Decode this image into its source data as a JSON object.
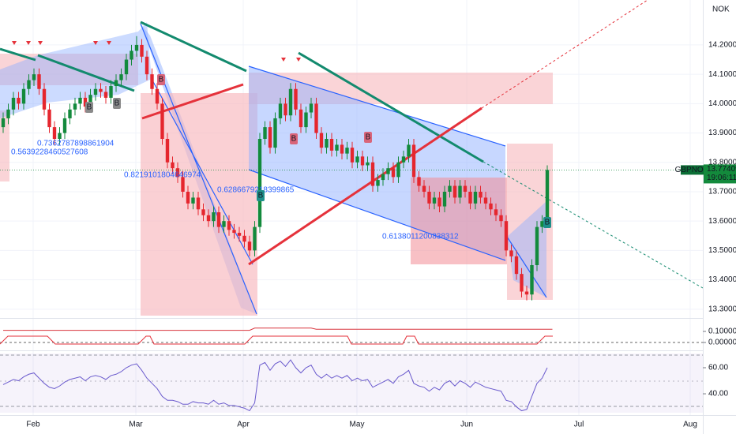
{
  "chart_data": {
    "type": "candlestick",
    "symbol": "GBPNOK",
    "currency": "NOK",
    "months": [
      "Feb",
      "Mar",
      "Apr",
      "May",
      "Jun",
      "Jul",
      "Aug"
    ],
    "ylim": [
      13.278,
      14.353
    ],
    "yticks": [
      {
        "value": 14.2,
        "label": "14.20000"
      },
      {
        "value": 14.1,
        "label": "14.10000"
      },
      {
        "value": 14.0,
        "label": "14.00000"
      },
      {
        "value": 13.9,
        "label": "13.90000"
      },
      {
        "value": 13.8,
        "label": "13.80000"
      },
      {
        "value": 13.7,
        "label": "13.70000"
      },
      {
        "value": 13.6,
        "label": "13.60000"
      },
      {
        "value": 13.5,
        "label": "13.50000"
      },
      {
        "value": 13.4,
        "label": "13.40000"
      },
      {
        "value": 13.3,
        "label": "13.30000"
      }
    ],
    "grid": true,
    "up_color": "#138a3c",
    "down_color": "#e5262e",
    "last_price": 13.77409,
    "countdown": "19:06:11",
    "candles": [
      [
        13.92,
        13.97,
        13.9,
        13.95
      ],
      [
        13.95,
        14.0,
        13.93,
        13.98
      ],
      [
        13.98,
        14.04,
        13.96,
        14.02
      ],
      [
        14.02,
        14.04,
        13.98,
        14.0
      ],
      [
        14.0,
        14.07,
        13.98,
        14.05
      ],
      [
        14.05,
        14.1,
        14.03,
        14.08
      ],
      [
        14.08,
        14.12,
        14.06,
        14.1
      ],
      [
        14.1,
        14.12,
        14.03,
        14.05
      ],
      [
        14.05,
        14.07,
        13.96,
        13.98
      ],
      [
        13.98,
        14.0,
        13.9,
        13.92
      ],
      [
        13.92,
        13.94,
        13.86,
        13.88
      ],
      [
        13.88,
        13.92,
        13.86,
        13.9
      ],
      [
        13.9,
        13.97,
        13.88,
        13.95
      ],
      [
        13.95,
        14.0,
        13.93,
        13.98
      ],
      [
        13.98,
        14.02,
        13.96,
        14.0
      ],
      [
        14.0,
        14.04,
        13.98,
        14.02
      ],
      [
        14.02,
        14.04,
        13.97,
        13.99
      ],
      [
        13.99,
        14.05,
        13.97,
        14.03
      ],
      [
        14.03,
        14.07,
        14.01,
        14.05
      ],
      [
        14.05,
        14.07,
        14.02,
        14.04
      ],
      [
        14.04,
        14.06,
        14.0,
        14.02
      ],
      [
        14.02,
        14.08,
        14.0,
        14.06
      ],
      [
        14.06,
        14.1,
        14.04,
        14.08
      ],
      [
        14.08,
        14.12,
        14.06,
        14.1
      ],
      [
        14.1,
        14.17,
        14.08,
        14.15
      ],
      [
        14.15,
        14.2,
        14.13,
        14.18
      ],
      [
        14.18,
        14.23,
        14.16,
        14.2
      ],
      [
        14.2,
        14.22,
        14.14,
        14.16
      ],
      [
        14.16,
        14.18,
        14.08,
        14.1
      ],
      [
        14.1,
        14.12,
        14.03,
        14.05
      ],
      [
        14.05,
        14.07,
        13.98,
        14.0
      ],
      [
        14.0,
        14.02,
        13.86,
        13.88
      ],
      [
        13.88,
        13.9,
        13.78,
        13.8
      ],
      [
        13.8,
        13.82,
        13.76,
        13.78
      ],
      [
        13.78,
        13.8,
        13.73,
        13.75
      ],
      [
        13.75,
        13.77,
        13.68,
        13.7
      ],
      [
        13.7,
        13.72,
        13.64,
        13.66
      ],
      [
        13.66,
        13.7,
        13.64,
        13.68
      ],
      [
        13.68,
        13.7,
        13.62,
        13.64
      ],
      [
        13.64,
        13.66,
        13.6,
        13.62
      ],
      [
        13.62,
        13.64,
        13.58,
        13.6
      ],
      [
        13.6,
        13.65,
        13.58,
        13.63
      ],
      [
        13.63,
        13.65,
        13.56,
        13.58
      ],
      [
        13.58,
        13.62,
        13.56,
        13.6
      ],
      [
        13.6,
        13.62,
        13.55,
        13.57
      ],
      [
        13.57,
        13.59,
        13.54,
        13.56
      ],
      [
        13.56,
        13.58,
        13.53,
        13.55
      ],
      [
        13.55,
        13.57,
        13.51,
        13.53
      ],
      [
        13.53,
        13.55,
        13.48,
        13.5
      ],
      [
        13.5,
        13.6,
        13.48,
        13.58
      ],
      [
        13.58,
        13.9,
        13.56,
        13.88
      ],
      [
        13.88,
        13.94,
        13.86,
        13.92
      ],
      [
        13.92,
        13.94,
        13.83,
        13.85
      ],
      [
        13.85,
        13.97,
        13.83,
        13.95
      ],
      [
        13.95,
        14.02,
        13.93,
        14.0
      ],
      [
        14.0,
        14.02,
        13.94,
        13.96
      ],
      [
        13.96,
        14.07,
        13.94,
        14.05
      ],
      [
        14.05,
        14.07,
        13.96,
        13.98
      ],
      [
        13.98,
        14.0,
        13.9,
        13.92
      ],
      [
        13.92,
        13.99,
        13.9,
        13.97
      ],
      [
        13.97,
        14.02,
        13.95,
        14.0
      ],
      [
        14.0,
        14.02,
        13.88,
        13.9
      ],
      [
        13.9,
        13.92,
        13.83,
        13.85
      ],
      [
        13.85,
        13.9,
        13.83,
        13.88
      ],
      [
        13.88,
        13.9,
        13.82,
        13.84
      ],
      [
        13.84,
        13.88,
        13.82,
        13.86
      ],
      [
        13.86,
        13.88,
        13.81,
        13.83
      ],
      [
        13.83,
        13.87,
        13.81,
        13.85
      ],
      [
        13.85,
        13.87,
        13.78,
        13.8
      ],
      [
        13.8,
        13.84,
        13.78,
        13.82
      ],
      [
        13.82,
        13.84,
        13.77,
        13.79
      ],
      [
        13.79,
        13.82,
        13.77,
        13.8
      ],
      [
        13.8,
        13.82,
        13.7,
        13.72
      ],
      [
        13.72,
        13.76,
        13.7,
        13.74
      ],
      [
        13.74,
        13.78,
        13.72,
        13.76
      ],
      [
        13.76,
        13.8,
        13.74,
        13.78
      ],
      [
        13.78,
        13.8,
        13.73,
        13.75
      ],
      [
        13.75,
        13.82,
        13.73,
        13.8
      ],
      [
        13.8,
        13.84,
        13.78,
        13.82
      ],
      [
        13.82,
        13.88,
        13.8,
        13.86
      ],
      [
        13.86,
        13.88,
        13.73,
        13.75
      ],
      [
        13.75,
        13.77,
        13.7,
        13.72
      ],
      [
        13.72,
        13.74,
        13.68,
        13.7
      ],
      [
        13.7,
        13.72,
        13.64,
        13.66
      ],
      [
        13.66,
        13.7,
        13.64,
        13.68
      ],
      [
        13.68,
        13.7,
        13.63,
        13.65
      ],
      [
        13.65,
        13.72,
        13.63,
        13.7
      ],
      [
        13.7,
        13.74,
        13.68,
        13.72
      ],
      [
        13.72,
        13.74,
        13.66,
        13.68
      ],
      [
        13.68,
        13.74,
        13.66,
        13.72
      ],
      [
        13.72,
        13.74,
        13.68,
        13.7
      ],
      [
        13.7,
        13.72,
        13.64,
        13.66
      ],
      [
        13.66,
        13.72,
        13.64,
        13.7
      ],
      [
        13.7,
        13.72,
        13.66,
        13.68
      ],
      [
        13.68,
        13.7,
        13.64,
        13.66
      ],
      [
        13.66,
        13.68,
        13.62,
        13.64
      ],
      [
        13.64,
        13.66,
        13.6,
        13.62
      ],
      [
        13.62,
        13.64,
        13.58,
        13.6
      ],
      [
        13.6,
        13.62,
        13.48,
        13.5
      ],
      [
        13.5,
        13.52,
        13.46,
        13.48
      ],
      [
        13.48,
        13.5,
        13.4,
        13.42
      ],
      [
        13.42,
        13.44,
        13.34,
        13.36
      ],
      [
        13.36,
        13.38,
        13.33,
        13.35
      ],
      [
        13.35,
        13.47,
        13.33,
        13.45
      ],
      [
        13.45,
        13.6,
        13.43,
        13.58
      ],
      [
        13.58,
        13.62,
        13.56,
        13.6
      ],
      [
        13.6,
        13.79,
        13.58,
        13.77409
      ]
    ],
    "annotations": [
      "0.7362787898861904",
      "0.5639228460527608",
      "0.8219101804646974",
      "0.6286679218399865",
      "0.6138011200838312"
    ],
    "signal_labels": [
      "B",
      "B",
      "B",
      "B",
      "B",
      "B",
      "B"
    ],
    "panes": [
      {
        "ylim": [
          -0.071,
          0.214
        ],
        "yticks": [
          {
            "value": 0.1,
            "label": "0.10000"
          },
          {
            "value": 0,
            "label": "0.00000"
          }
        ],
        "color": "#d9363e",
        "values": [
          0.11,
          0.11,
          0.11,
          0.11,
          0.11,
          0.11,
          0.11,
          0.11,
          0.11,
          0.11,
          0.11,
          0.11,
          0.11,
          0.11,
          0.11,
          0.11,
          0.11,
          0.11,
          0.11,
          0.11,
          0.11,
          0.11,
          0.11,
          0.11,
          0.11,
          0.11,
          0.11,
          0.11,
          0.11,
          0.11,
          0.11,
          0.11,
          0.11,
          0.11,
          0.11,
          0.11,
          0.11,
          0.11,
          0.11,
          0.11,
          0.11,
          0.11,
          0.11,
          0.11,
          0.11,
          0.11,
          0.11,
          0.11,
          0.11,
          0.13,
          0.13,
          0.13,
          0.13,
          0.13,
          0.13,
          0.13,
          0.13,
          0.13,
          0.13,
          0.13,
          0.13,
          0.12,
          0.12,
          0.12,
          0.12,
          0.12,
          0.12,
          0.12,
          0.12,
          0.12,
          0.12,
          0.12,
          0.12,
          0.12,
          0.12,
          0.12,
          0.12,
          0.12,
          0.12,
          0.12,
          0.12,
          0.12,
          0.12,
          0.12,
          0.12,
          0.12,
          0.12,
          0.12,
          0.12,
          0.12,
          0.12,
          0.12,
          0.12,
          0.12,
          0.12,
          0.12,
          0.12,
          0.12,
          0.12,
          0.12,
          0.12,
          0.12,
          0.12,
          0.12,
          0.12,
          0.12,
          0.12,
          0.12
        ]
      },
      {
        "ylim": [
          25.5,
          70.9
        ],
        "yticks": [
          {
            "value": 60,
            "label": "60.00"
          },
          {
            "value": 40,
            "label": "40.00"
          }
        ],
        "color": "#6a5acd",
        "values": [
          47,
          49,
          51,
          50,
          53,
          55,
          56,
          52,
          48,
          45,
          44,
          46,
          49,
          51,
          52,
          53,
          50,
          53,
          54,
          53,
          51,
          54,
          55,
          57,
          60,
          62,
          63,
          58,
          52,
          48,
          44,
          38,
          35,
          35,
          34,
          32,
          32,
          34,
          33,
          33,
          32,
          35,
          32,
          33,
          31,
          31,
          30,
          29,
          27,
          33,
          62,
          64,
          58,
          63,
          65,
          61,
          66,
          60,
          56,
          60,
          62,
          55,
          52,
          55,
          52,
          54,
          52,
          54,
          50,
          52,
          50,
          51,
          45,
          47,
          49,
          51,
          48,
          53,
          55,
          58,
          48,
          46,
          45,
          42,
          45,
          43,
          48,
          50,
          46,
          50,
          48,
          45,
          49,
          47,
          45,
          44,
          43,
          42,
          35,
          34,
          30,
          27,
          28,
          38,
          48,
          52,
          60
        ]
      }
    ]
  }
}
